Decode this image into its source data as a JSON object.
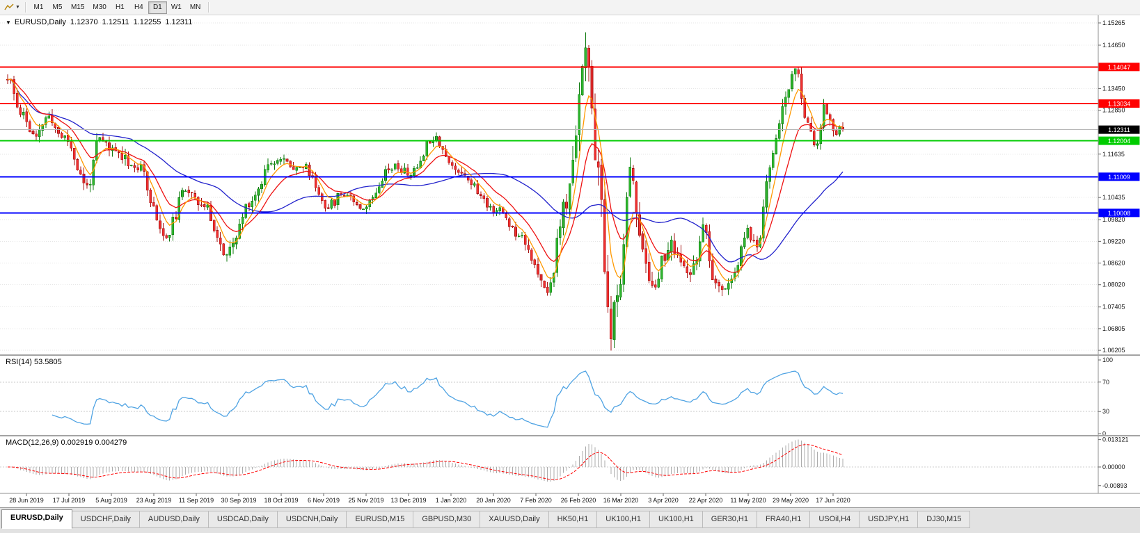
{
  "toolbar": {
    "timeframes": [
      "M1",
      "M5",
      "M15",
      "M30",
      "H1",
      "H4",
      "D1",
      "W1",
      "MN"
    ],
    "active_timeframe": "D1"
  },
  "chart": {
    "symbol_period": "EURUSD,Daily",
    "open": "1.12370",
    "high": "1.12511",
    "low": "1.12255",
    "close": "1.12311"
  },
  "rsi_label": "RSI(14) 53.5805",
  "macd_label": "MACD(12,26,9) 0.002919 0.004279",
  "tabs": [
    "EURUSD,Daily",
    "USDCHF,Daily",
    "AUDUSD,Daily",
    "USDCAD,Daily",
    "USDCNH,Daily",
    "EURUSD,M15",
    "GBPUSD,M30",
    "XAUUSD,Daily",
    "HK50,H1",
    "UK100,H1",
    "UK100,H1",
    "GER30,H1",
    "FRA40,H1",
    "USOil,H4",
    "USDJPY,H1",
    "DJ30,M15"
  ],
  "active_tab_index": 0,
  "chart_data": {
    "type": "candlestick",
    "symbol": "EURUSD",
    "period": "Daily",
    "last_ohlc": {
      "open": 1.1237,
      "high": 1.12511,
      "low": 1.12255,
      "close": 1.12311
    },
    "x_labels": [
      "28 Jun 2019",
      "17 Jul 2019",
      "5 Aug 2019",
      "23 Aug 2019",
      "11 Sep 2019",
      "30 Sep 2019",
      "18 Oct 2019",
      "6 Nov 2019",
      "25 Nov 2019",
      "13 Dec 2019",
      "1 Jan 2020",
      "20 Jan 2020",
      "7 Feb 2020",
      "26 Feb 2020",
      "16 Mar 2020",
      "3 Apr 2020",
      "22 Apr 2020",
      "11 May 2020",
      "29 May 2020",
      "17 Jun 2020"
    ],
    "y_axis": {
      "ticks": [
        "1.15265",
        "1.14650",
        "1.13450",
        "1.12850",
        "1.11635",
        "1.10435",
        "1.09820",
        "1.09220",
        "1.08620",
        "1.08020",
        "1.07405",
        "1.06805",
        "1.06205"
      ]
    },
    "hlines": [
      {
        "price": 1.14047,
        "label": "1.14047",
        "color": "#FF0000",
        "width": 2,
        "role": "resistance"
      },
      {
        "price": 1.13034,
        "label": "1.13034",
        "color": "#FF0000",
        "width": 2,
        "role": "resistance"
      },
      {
        "price": 1.12004,
        "label": "1.12004",
        "color": "#00CC00",
        "width": 2,
        "role": "support"
      },
      {
        "price": 1.11009,
        "label": "1.11009",
        "color": "#0000FF",
        "width": 2,
        "role": "support"
      },
      {
        "price": 1.10008,
        "label": "1.10008",
        "color": "#0000FF",
        "width": 2,
        "role": "support"
      }
    ],
    "current_price": {
      "value": 1.12311,
      "label": "1.12311",
      "badge_color": "#000000"
    },
    "candles": {
      "count": 264,
      "seed": 11,
      "up_color": "#2FB52F",
      "up_edge": "#0E7A0E",
      "down_color": "#F03030",
      "down_edge": "#A51212",
      "path_anchors": [
        [
          0.0,
          1.137,
          0.0045
        ],
        [
          0.015,
          1.1285,
          0.0042
        ],
        [
          0.034,
          1.1205,
          0.0038
        ],
        [
          0.046,
          1.1265,
          0.0038
        ],
        [
          0.068,
          1.121,
          0.0036
        ],
        [
          0.095,
          1.1075,
          0.0042
        ],
        [
          0.11,
          1.12,
          0.0044
        ],
        [
          0.129,
          1.117,
          0.0038
        ],
        [
          0.16,
          1.112,
          0.0038
        ],
        [
          0.179,
          1.0995,
          0.004
        ],
        [
          0.186,
          1.093,
          0.004
        ],
        [
          0.217,
          1.107,
          0.004
        ],
        [
          0.236,
          1.1015,
          0.0036
        ],
        [
          0.262,
          1.0885,
          0.0042
        ],
        [
          0.293,
          1.104,
          0.0038
        ],
        [
          0.316,
          1.115,
          0.0036
        ],
        [
          0.354,
          1.1128,
          0.0032
        ],
        [
          0.384,
          1.1021,
          0.003
        ],
        [
          0.403,
          1.1058,
          0.003
        ],
        [
          0.426,
          1.1018,
          0.0028
        ],
        [
          0.46,
          1.113,
          0.003
        ],
        [
          0.483,
          1.111,
          0.0028
        ],
        [
          0.51,
          1.1212,
          0.003
        ],
        [
          0.536,
          1.1122,
          0.003
        ],
        [
          0.586,
          1.101,
          0.0028
        ],
        [
          0.612,
          1.0945,
          0.0032
        ],
        [
          0.646,
          1.0786,
          0.004
        ],
        [
          0.669,
          1.1026,
          0.0065
        ],
        [
          0.692,
          1.145,
          0.011
        ],
        [
          0.703,
          1.1184,
          0.012
        ],
        [
          0.722,
          1.068,
          0.0105
        ],
        [
          0.73,
          1.074,
          0.0095
        ],
        [
          0.745,
          1.112,
          0.009
        ],
        [
          0.757,
          1.096,
          0.0075
        ],
        [
          0.768,
          1.08,
          0.0062
        ],
        [
          0.795,
          1.0905,
          0.0052
        ],
        [
          0.817,
          1.0822,
          0.0048
        ],
        [
          0.833,
          1.095,
          0.0048
        ],
        [
          0.848,
          1.0788,
          0.0046
        ],
        [
          0.867,
          1.0808,
          0.004
        ],
        [
          0.886,
          1.0948,
          0.004
        ],
        [
          0.897,
          1.0905,
          0.0038
        ],
        [
          0.913,
          1.1135,
          0.0046
        ],
        [
          0.928,
          1.129,
          0.0046
        ],
        [
          0.943,
          1.14,
          0.0048
        ],
        [
          0.954,
          1.128,
          0.0042
        ],
        [
          0.97,
          1.118,
          0.0038
        ],
        [
          0.977,
          1.1308,
          0.0036
        ],
        [
          0.989,
          1.1225,
          0.0032
        ],
        [
          1.0,
          1.1231,
          0.0026
        ]
      ]
    },
    "moving_averages": [
      {
        "name": "fast",
        "period": 6,
        "color": "#FF9900"
      },
      {
        "name": "medium",
        "period": 14,
        "color": "#EE1111"
      },
      {
        "name": "slow",
        "period": 40,
        "color": "#2222CC"
      }
    ],
    "rsi": {
      "period": 14,
      "value": 53.5805,
      "levels": [
        100,
        70,
        30,
        0
      ],
      "color": "#4FA3E3"
    },
    "macd": {
      "fast": 12,
      "slow": 26,
      "signal": 9,
      "value": 0.002919,
      "signal_value": 0.004279,
      "y_ticks": [
        "0.013121",
        "0.00000",
        "-0.00893"
      ],
      "histogram_color": "#ABABAB",
      "signal_color": "#FF0000"
    }
  }
}
